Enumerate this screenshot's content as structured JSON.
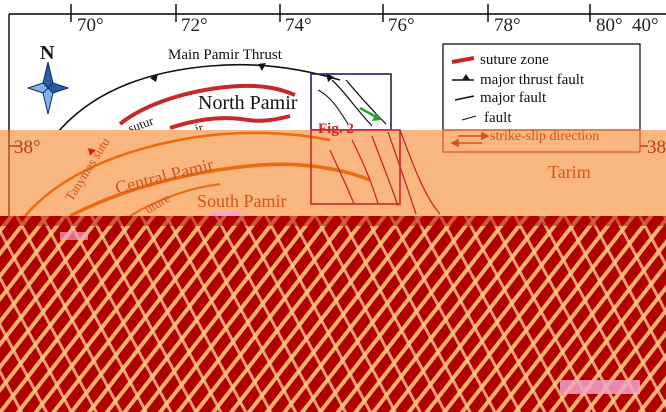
{
  "map": {
    "longitude_ticks": [
      "70°",
      "72°",
      "74°",
      "76°",
      "78°",
      "80°",
      "40°"
    ],
    "latitude_left": "38°",
    "latitude_right": "38",
    "north_label": "N",
    "labels": {
      "main_pamir_thrust": "Main Pamir Thrust",
      "north_pamir": "North Pamir",
      "central_pamir": "Central Pamir",
      "south_pamir": "South Pamir",
      "tanymas_suture": "Tanymas sutu",
      "suture_fragment_1": "uture",
      "suture_fragment_2": "ir",
      "tarim": "Tarim",
      "fig_ref": "Fig. 2"
    },
    "legend": {
      "suture_zone": "suture zone",
      "major_thrust_fault": "major thrust fault",
      "major_fault": "major fault",
      "fault": "fault",
      "strike_slip_direction": "strike-slip direction"
    },
    "colors": {
      "suture_red": "#c8282a",
      "fault_orange": "#ee6a10",
      "band_background": "#f9b67e",
      "lower_background": "#b00000",
      "lower_stripes": "#f3b06f",
      "inset_box": "#1f1f70",
      "strike_arrow": "#2f9e35"
    }
  }
}
